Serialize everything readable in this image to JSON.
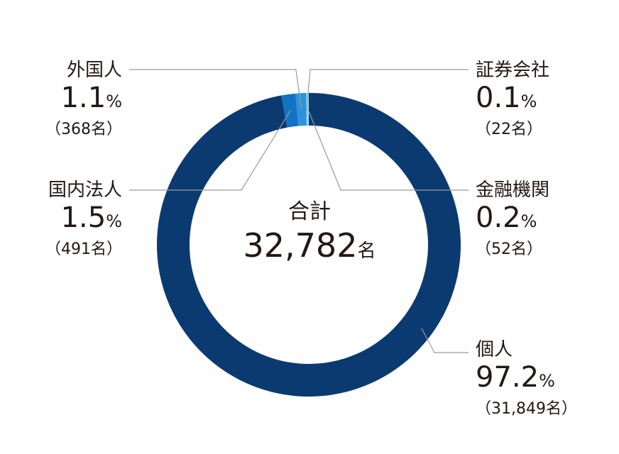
{
  "chart_data": {
    "type": "pie",
    "subtype": "donut",
    "center": {
      "title": "合計",
      "total_value": "32,782",
      "total_unit": "名"
    },
    "slices": [
      {
        "key": "kojin",
        "label": "個人",
        "value": 97.2,
        "percent_text": "97.2",
        "count_text": "（31,849名）",
        "color": "#0b3a70"
      },
      {
        "key": "kokunai",
        "label": "国内法人",
        "value": 1.5,
        "percent_text": "1.5",
        "count_text": "（491名）",
        "color": "#1273c4"
      },
      {
        "key": "gaikoku",
        "label": "外国人",
        "value": 1.1,
        "percent_text": "1.1",
        "count_text": "（368名）",
        "color": "#2b93dc"
      },
      {
        "key": "shoken",
        "label": "証券会社",
        "value": 0.1,
        "percent_text": "0.1",
        "count_text": "（22名）",
        "color": "#6cc6f1"
      },
      {
        "key": "kinyu",
        "label": "金融機関",
        "value": 0.2,
        "percent_text": "0.2",
        "count_text": "（52名）",
        "color": "#9fd9f7"
      }
    ],
    "percent_symbol": "%"
  },
  "colors": {
    "leader_line": "#9a9a9a",
    "text": "#231815"
  }
}
